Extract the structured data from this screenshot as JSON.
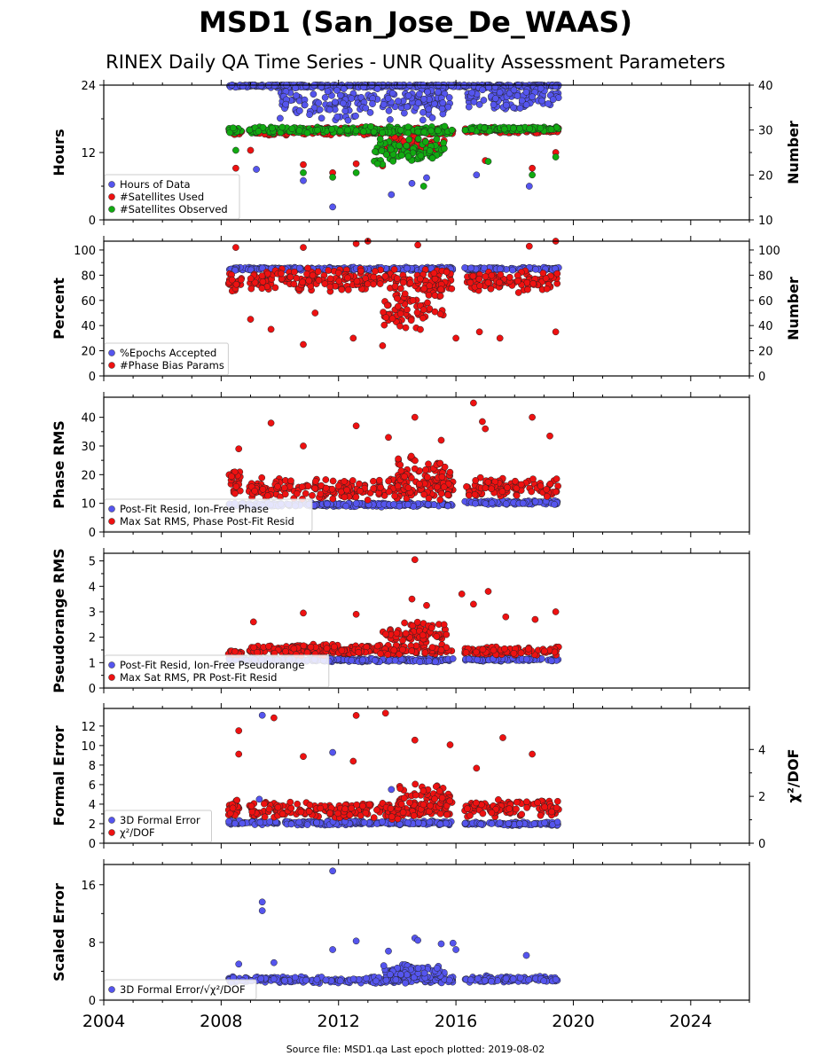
{
  "title": "MSD1 (San_Jose_De_WAAS)",
  "subtitle": "RINEX Daily QA Time Series - UNR Quality Assessment Parameters",
  "footer": {
    "source_label": "Source file:",
    "source_file": "MSD1.qa",
    "last_epoch_label": "Last epoch plotted:",
    "last_epoch": "2019-08-02"
  },
  "colors": {
    "blue": "#5555ee",
    "red": "#ee1111",
    "green": "#11aa11",
    "edge": "#222222"
  },
  "chart_data": [
    {
      "type": "scatter",
      "ylabel": "Hours",
      "ylabel_right": "Number",
      "xlim": [
        2004,
        2026
      ],
      "ylim": [
        0,
        24
      ],
      "yticks": [
        0,
        12,
        24
      ],
      "ylim_right": [
        10,
        40
      ],
      "yticks_right": [
        10,
        20,
        30,
        40
      ],
      "legend_position": "lower-left",
      "series": [
        {
          "name": "Hours of Data",
          "color": "blue",
          "axis": "left",
          "segments": [
            {
              "x": [
                2008.25,
                2019.5
              ],
              "y": 23.9,
              "spread": 0.5
            },
            {
              "x": [
                2010.0,
                2015.8
              ],
              "y": 21.0,
              "spread": 3.5
            },
            {
              "x": [
                2016.4,
                2019.5
              ],
              "y": 22.0,
              "spread": 2.5
            }
          ],
          "outliers": [
            [
              2011.8,
              2.3
            ],
            [
              2009.2,
              9.0
            ],
            [
              2013.8,
              4.5
            ],
            [
              2018.5,
              6.0
            ],
            [
              2014.5,
              6.5
            ],
            [
              2015.0,
              7.5
            ],
            [
              2010.8,
              7.0
            ],
            [
              2016.7,
              8.0
            ]
          ]
        },
        {
          "name": "#Satellites Used",
          "color": "red",
          "axis": "right",
          "segments": [
            {
              "x": [
                2008.25,
                2008.7
              ],
              "y": 29.6,
              "spread": 0.8
            },
            {
              "x": [
                2008.95,
                2015.9
              ],
              "y": 29.7,
              "spread": 1.0
            },
            {
              "x": [
                2016.3,
                2019.5
              ],
              "y": 29.9,
              "spread": 0.8
            },
            {
              "x": [
                2013.5,
                2015.6
              ],
              "y": 26.5,
              "spread": 2.5
            }
          ],
          "outliers": [
            [
              2008.5,
              21.5
            ],
            [
              2009.0,
              25.5
            ],
            [
              2010.8,
              22.3
            ],
            [
              2011.8,
              20.5
            ],
            [
              2012.6,
              22.5
            ],
            [
              2013.5,
              22.0
            ],
            [
              2017.0,
              23.2
            ],
            [
              2018.6,
              21.5
            ],
            [
              2019.4,
              25.0
            ]
          ]
        },
        {
          "name": "#Satellites Observed",
          "color": "green",
          "axis": "right",
          "segments": [
            {
              "x": [
                2008.25,
                2008.7
              ],
              "y": 30.0,
              "spread": 0.8
            },
            {
              "x": [
                2008.95,
                2015.9
              ],
              "y": 30.0,
              "spread": 0.9
            },
            {
              "x": [
                2016.3,
                2019.5
              ],
              "y": 30.2,
              "spread": 0.6
            },
            {
              "x": [
                2013.2,
                2015.6
              ],
              "y": 25.0,
              "spread": 3.5
            }
          ],
          "outliers": [
            [
              2008.5,
              25.5
            ],
            [
              2010.8,
              20.5
            ],
            [
              2011.8,
              19.5
            ],
            [
              2012.6,
              20.5
            ],
            [
              2014.9,
              17.5
            ],
            [
              2018.6,
              20.0
            ],
            [
              2017.1,
              23.0
            ],
            [
              2019.4,
              24.0
            ]
          ]
        }
      ]
    },
    {
      "type": "scatter",
      "ylabel": "Percent",
      "ylabel_right": "Number",
      "xlim": [
        2004,
        2026
      ],
      "ylim": [
        0,
        107
      ],
      "yticks": [
        0,
        20,
        40,
        60,
        80,
        100
      ],
      "ylim_right": [
        0,
        107
      ],
      "yticks_right": [
        0,
        20,
        40,
        60,
        80,
        100
      ],
      "legend_position": "lower-left",
      "series": [
        {
          "name": "%Epochs Accepted",
          "color": "blue",
          "axis": "left",
          "segments": [
            {
              "x": [
                2008.25,
                2015.9
              ],
              "y": 85.0,
              "spread": 1.5
            },
            {
              "x": [
                2016.3,
                2019.5
              ],
              "y": 85.0,
              "spread": 1.5
            }
          ],
          "outliers": []
        },
        {
          "name": "#Phase Bias Params",
          "color": "red",
          "axis": "right",
          "segments": [
            {
              "x": [
                2008.25,
                2008.7
              ],
              "y": 74.0,
              "spread": 8.0
            },
            {
              "x": [
                2008.95,
                2015.9
              ],
              "y": 76.0,
              "spread": 10.0
            },
            {
              "x": [
                2016.3,
                2019.5
              ],
              "y": 75.0,
              "spread": 9.0
            },
            {
              "x": [
                2013.5,
                2015.6
              ],
              "y": 55.0,
              "spread": 20.0
            }
          ],
          "outliers": [
            [
              2009.0,
              45.0
            ],
            [
              2009.7,
              37.0
            ],
            [
              2010.8,
              25.0
            ],
            [
              2011.2,
              50.0
            ],
            [
              2012.5,
              30.0
            ],
            [
              2013.5,
              24.0
            ],
            [
              2013.0,
              107.0
            ],
            [
              2012.6,
              105.0
            ],
            [
              2016.0,
              30.0
            ],
            [
              2016.8,
              35.0
            ],
            [
              2017.5,
              30.0
            ],
            [
              2018.5,
              103.0
            ],
            [
              2019.4,
              107.0
            ],
            [
              2019.4,
              35.0
            ],
            [
              2010.8,
              102.0
            ],
            [
              2008.5,
              102.0
            ],
            [
              2014.7,
              104.0
            ]
          ]
        }
      ]
    },
    {
      "type": "scatter",
      "ylabel": "Phase RMS",
      "xlim": [
        2004,
        2026
      ],
      "ylim": [
        0,
        47
      ],
      "yticks": [
        0,
        10,
        20,
        30,
        40
      ],
      "legend_position": "lower-left",
      "series": [
        {
          "name": "Post-Fit Resid, Ion-Free Phase",
          "color": "blue",
          "axis": "left",
          "segments": [
            {
              "x": [
                2008.25,
                2015.9
              ],
              "y": 9.5,
              "spread": 0.8
            },
            {
              "x": [
                2016.3,
                2019.5
              ],
              "y": 10.2,
              "spread": 0.8
            }
          ],
          "outliers": []
        },
        {
          "name": "Max Sat RMS, Phase Post-Fit Resid",
          "color": "red",
          "axis": "left",
          "segments": [
            {
              "x": [
                2008.25,
                2008.7
              ],
              "y": 17.0,
              "spread": 5.0
            },
            {
              "x": [
                2008.95,
                2015.9
              ],
              "y": 15.0,
              "spread": 4.0
            },
            {
              "x": [
                2016.3,
                2019.5
              ],
              "y": 15.5,
              "spread": 4.0
            },
            {
              "x": [
                2014.0,
                2015.8
              ],
              "y": 20.0,
              "spread": 7.0
            }
          ],
          "outliers": [
            [
              2009.7,
              38.0
            ],
            [
              2010.8,
              30.0
            ],
            [
              2012.6,
              37.0
            ],
            [
              2014.6,
              40.0
            ],
            [
              2016.6,
              45.0
            ],
            [
              2016.9,
              38.5
            ],
            [
              2017.0,
              36.0
            ],
            [
              2018.6,
              40.0
            ],
            [
              2019.2,
              33.5
            ],
            [
              2008.6,
              29.0
            ],
            [
              2015.5,
              32.0
            ],
            [
              2013.7,
              33.0
            ]
          ]
        }
      ]
    },
    {
      "type": "scatter",
      "ylabel": "Pseudorange RMS",
      "xlim": [
        2004,
        2026
      ],
      "ylim": [
        0,
        5.3
      ],
      "yticks": [
        0,
        1,
        2,
        3,
        4,
        5
      ],
      "legend_position": "lower-left",
      "series": [
        {
          "name": "Post-Fit Resid, Ion-Free Pseudorange",
          "color": "blue",
          "axis": "left",
          "segments": [
            {
              "x": [
                2008.25,
                2015.9
              ],
              "y": 1.1,
              "spread": 0.08
            },
            {
              "x": [
                2016.3,
                2019.5
              ],
              "y": 1.12,
              "spread": 0.08
            }
          ],
          "outliers": []
        },
        {
          "name": "Max Sat RMS, PR Post-Fit Resid",
          "color": "red",
          "axis": "left",
          "segments": [
            {
              "x": [
                2008.25,
                2008.7
              ],
              "y": 1.4,
              "spread": 0.12
            },
            {
              "x": [
                2008.95,
                2015.9
              ],
              "y": 1.5,
              "spread": 0.25
            },
            {
              "x": [
                2016.3,
                2019.5
              ],
              "y": 1.45,
              "spread": 0.2
            },
            {
              "x": [
                2013.5,
                2015.7
              ],
              "y": 2.2,
              "spread": 0.5
            }
          ],
          "outliers": [
            [
              2009.1,
              2.6
            ],
            [
              2010.8,
              2.95
            ],
            [
              2012.6,
              2.9
            ],
            [
              2014.6,
              5.05
            ],
            [
              2014.5,
              3.5
            ],
            [
              2016.2,
              3.7
            ],
            [
              2017.1,
              3.8
            ],
            [
              2016.6,
              3.3
            ],
            [
              2017.7,
              2.8
            ],
            [
              2019.4,
              3.0
            ],
            [
              2015.0,
              3.25
            ],
            [
              2018.7,
              2.7
            ]
          ]
        }
      ]
    },
    {
      "type": "scatter",
      "ylabel": "Formal Error",
      "ylabel_right": "χ²/DOF",
      "xlim": [
        2004,
        2026
      ],
      "ylim": [
        0,
        13.8
      ],
      "yticks": [
        0,
        2,
        4,
        6,
        8,
        10,
        12
      ],
      "ylim_right": [
        0,
        5.75
      ],
      "yticks_right": [
        0,
        2,
        4
      ],
      "legend_position": "lower-left",
      "series": [
        {
          "name": "3D Formal Error",
          "color": "blue",
          "axis": "left",
          "segments": [
            {
              "x": [
                2008.25,
                2015.9
              ],
              "y": 2.1,
              "spread": 0.25
            },
            {
              "x": [
                2016.3,
                2019.5
              ],
              "y": 2.0,
              "spread": 0.2
            }
          ],
          "outliers": [
            [
              2009.4,
              13.1
            ],
            [
              2011.8,
              9.3
            ],
            [
              2013.8,
              5.5
            ],
            [
              2009.3,
              4.5
            ]
          ]
        },
        {
          "name": "χ²/DOF",
          "color": "red",
          "axis": "right",
          "segments": [
            {
              "x": [
                2008.25,
                2008.7
              ],
              "y": 1.5,
              "spread": 0.35
            },
            {
              "x": [
                2008.95,
                2015.9
              ],
              "y": 1.4,
              "spread": 0.4
            },
            {
              "x": [
                2016.3,
                2019.5
              ],
              "y": 1.5,
              "spread": 0.4
            },
            {
              "x": [
                2014.0,
                2015.8
              ],
              "y": 2.0,
              "spread": 0.6
            }
          ],
          "outliers": [
            [
              2008.6,
              4.8
            ],
            [
              2008.6,
              3.8
            ],
            [
              2009.8,
              5.35
            ],
            [
              2010.8,
              3.7
            ],
            [
              2012.6,
              5.45
            ],
            [
              2013.6,
              5.55
            ],
            [
              2014.6,
              4.4
            ],
            [
              2015.8,
              4.2
            ],
            [
              2017.6,
              4.5
            ],
            [
              2018.6,
              3.8
            ],
            [
              2012.5,
              3.5
            ],
            [
              2016.7,
              3.2
            ]
          ]
        }
      ]
    },
    {
      "type": "scatter",
      "ylabel": "Scaled Error",
      "xlim": [
        2004,
        2026
      ],
      "ylim": [
        0,
        18.8
      ],
      "yticks": [
        0,
        8,
        16
      ],
      "xticks": [
        2004,
        2008,
        2012,
        2016,
        2020,
        2024
      ],
      "legend_position": "lower-left",
      "series": [
        {
          "name": "3D Formal Error/√χ²/DOF",
          "color": "blue",
          "axis": "left",
          "segments": [
            {
              "x": [
                2008.25,
                2015.9
              ],
              "y": 2.8,
              "spread": 0.5
            },
            {
              "x": [
                2016.3,
                2019.5
              ],
              "y": 2.9,
              "spread": 0.5
            },
            {
              "x": [
                2013.5,
                2015.8
              ],
              "y": 4.0,
              "spread": 1.5
            }
          ],
          "outliers": [
            [
              2011.8,
              17.9
            ],
            [
              2009.4,
              13.6
            ],
            [
              2009.4,
              12.4
            ],
            [
              2012.6,
              8.2
            ],
            [
              2014.6,
              8.6
            ],
            [
              2014.7,
              8.3
            ],
            [
              2015.5,
              7.8
            ],
            [
              2015.9,
              7.9
            ],
            [
              2011.8,
              7.0
            ],
            [
              2013.7,
              6.8
            ],
            [
              2008.6,
              5.0
            ],
            [
              2018.4,
              6.2
            ],
            [
              2016.0,
              7.0
            ],
            [
              2009.8,
              5.2
            ]
          ]
        }
      ]
    }
  ]
}
